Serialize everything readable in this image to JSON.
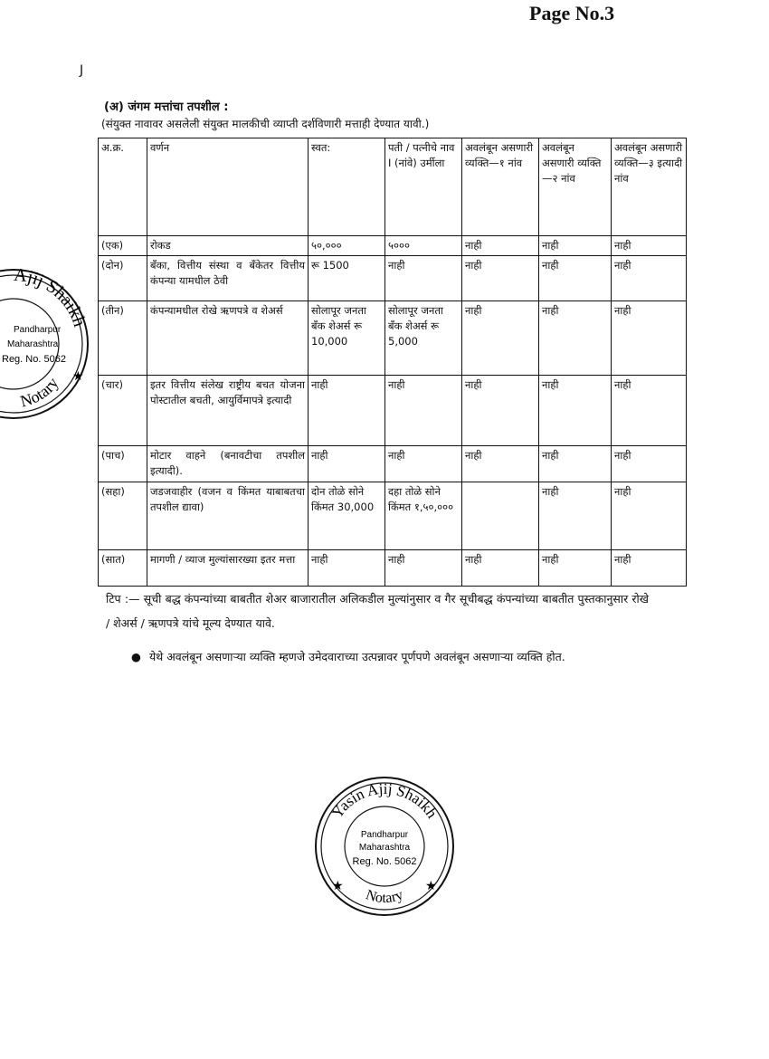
{
  "page_number": "Page No.3",
  "corner_mark": "J",
  "section_title": "(अ)    जंगम मत्तांचा तपशील :",
  "section_subtitle": "(संयुक्त नावावर असलेली संयुक्त मालकीची व्याप्ती दर्शविणारी मत्ताही देण्यात यावी.)",
  "table": {
    "headers": [
      "अ.क्र.",
      "वर्णन",
      "स्वत:",
      "पती / पत्नीचे नाव I (नांवे) उर्मीला",
      "अवलंबून असणारी व्यक्ति—१ नांव",
      "अवलंबून असणारी व्यक्ति—२ नांव",
      "अवलंबून असणारी व्यक्ति—३ इत्यादी नांव"
    ],
    "rows": [
      [
        "(एक)",
        "रोकड",
        "५०,०००",
        "५०००",
        "नाही",
        "नाही",
        "नाही"
      ],
      [
        "(दोन)",
        "बँका, वित्तीय संस्था व बँकेतर वित्तीय कंपन्या यामधील ठेवी",
        "रू 1500",
        "नाही",
        "नाही",
        "नाही",
        "नाही"
      ],
      [
        "(तीन)",
        "कंपन्यामधील रोखे ऋणपत्रे व शेअर्स",
        "सोलापूर जनता बँक शेअर्स रू 10,000",
        "सोलापूर जनता बँक शेअर्स रू 5,000",
        "नाही",
        "नाही",
        "नाही"
      ],
      [
        "(चार)",
        "इतर वित्तीय संलेख राष्ट्रीय बचत योजना पोस्टातील बचती, आयुर्विमापत्रे इत्यादी",
        "नाही",
        "नाही",
        "नाही",
        "नाही",
        "नाही"
      ],
      [
        "(पाच)",
        "मोटार वाहने (बनावटीचा तपशील इत्यादी).",
        "नाही",
        "नाही",
        "नाही",
        "नाही",
        "नाही"
      ],
      [
        "(सहा)",
        "जडजवाहीर (वजन व किंमत याबाबतचा तपशील द्यावा)",
        "दोन तोळे सोने किंमत 30,000",
        "दहा तोळे सोने किंमत १,५०,०००",
        "",
        "नाही",
        "नाही"
      ],
      [
        "(सात)",
        "मागणी / व्याज मुल्यांसारख्या इतर मत्ता",
        "नाही",
        "नाही",
        "नाही",
        "नाही",
        "नाही"
      ]
    ]
  },
  "note": "टिप :— सूची बद्ध कंपन्यांच्या बाबतीत शेअर बाजारातील अलिकडील मुल्यांनुसार व गैर सूचीबद्ध कंपन्यांच्या बाबतीत पुस्तकानुसार रोखे / शेअर्स / ऋणपत्रे यांचे मूल्य देण्यात यावे.",
  "bullet": "येथे अवलंबून असणाऱ्या व्यक्ति म्हणजे उमेदवाराच्या उत्पन्नावर पूर्णपणे अवलंबून असणाऱ्या व्यक्ति होत.",
  "stamps": {
    "name": "Yasin Ajij Shaikh",
    "partial_name": "Ajij Shaikh",
    "place": "Pandharpur",
    "state": "Maharashtra",
    "reg": "Reg. No. 5062",
    "title": "Notary",
    "ink_color": "#111111"
  }
}
